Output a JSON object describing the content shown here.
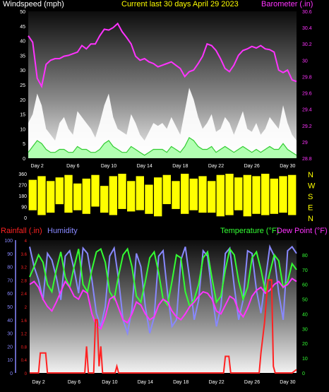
{
  "colors": {
    "wind_label": "#ffffff",
    "title": "#ffff00",
    "barometer": "#ff33ff",
    "rainfall": "#ff2222",
    "humidity": "#8888ff",
    "temperature": "#33ff33",
    "dewpoint": "#ff33ff",
    "winddir": "#ffff00"
  },
  "x_ticks": [
    "Day 2",
    "Day 6",
    "Day 10",
    "Day 14",
    "Day 18",
    "Day 22",
    "Day 26",
    "Day 30"
  ],
  "chart_data": [
    {
      "type": "line",
      "title": "Current last 30 days April 29 2023",
      "ylabel": "Windspeed (mph)",
      "y2label": "Barometer (.in)",
      "ylim": [
        0,
        50
      ],
      "y_ticks": [
        "0",
        "5",
        "10",
        "15",
        "20",
        "25",
        "30",
        "35",
        "40",
        "45",
        "50"
      ],
      "y2lim": [
        28.8,
        30.6
      ],
      "y2_ticks": [
        "28.8",
        "29",
        "29.2",
        "29.4",
        "29.6",
        "29.8",
        "30",
        "30.2",
        "30.4",
        "30.6"
      ],
      "xlim": [
        0,
        30
      ],
      "series": [
        {
          "name": "Windspeed (mph)",
          "role": "gust",
          "x": [
            0,
            0.5,
            1,
            1.5,
            2,
            2.5,
            3,
            3.5,
            4,
            4.5,
            5,
            5.5,
            6,
            6.5,
            7,
            7.5,
            8,
            8.5,
            9,
            9.5,
            10,
            10.5,
            11,
            11.5,
            12,
            12.5,
            13,
            13.5,
            14,
            14.5,
            15,
            15.5,
            16,
            16.5,
            17,
            17.5,
            18,
            18.5,
            19,
            19.5,
            20,
            20.5,
            21,
            21.5,
            22,
            22.5,
            23,
            23.5,
            24,
            24.5,
            25,
            25.5,
            26,
            26.5,
            27,
            27.5,
            28,
            28.5,
            29,
            29.5,
            30
          ],
          "values": [
            12,
            15,
            22,
            18,
            10,
            8,
            6,
            12,
            14,
            10,
            8,
            16,
            14,
            12,
            10,
            7,
            12,
            18,
            22,
            14,
            10,
            9,
            8,
            15,
            12,
            8,
            6,
            9,
            12,
            11,
            12,
            10,
            14,
            11,
            8,
            16,
            24,
            20,
            14,
            10,
            12,
            15,
            9,
            10,
            14,
            12,
            8,
            12,
            16,
            10,
            9,
            12,
            8,
            10,
            14,
            12,
            10,
            18,
            12,
            8,
            6
          ]
        },
        {
          "name": "Windspeed (mph)",
          "role": "average",
          "x": [
            0,
            0.5,
            1,
            1.5,
            2,
            2.5,
            3,
            3.5,
            4,
            4.5,
            5,
            5.5,
            6,
            6.5,
            7,
            7.5,
            8,
            8.5,
            9,
            9.5,
            10,
            10.5,
            11,
            11.5,
            12,
            12.5,
            13,
            13.5,
            14,
            14.5,
            15,
            15.5,
            16,
            16.5,
            17,
            17.5,
            18,
            18.5,
            19,
            19.5,
            20,
            20.5,
            21,
            21.5,
            22,
            22.5,
            23,
            23.5,
            24,
            24.5,
            25,
            25.5,
            26,
            26.5,
            27,
            27.5,
            28,
            28.5,
            29,
            29.5,
            30
          ],
          "values": [
            2,
            4,
            6,
            5,
            3,
            2,
            2,
            3,
            3,
            2,
            2,
            4,
            3,
            3,
            2,
            2,
            3,
            5,
            6,
            4,
            3,
            2,
            2,
            4,
            3,
            2,
            1,
            2,
            3,
            3,
            3,
            2,
            4,
            3,
            2,
            4,
            7,
            6,
            4,
            3,
            3,
            4,
            2,
            3,
            4,
            3,
            2,
            3,
            4,
            3,
            2,
            3,
            2,
            3,
            4,
            3,
            3,
            5,
            3,
            2,
            1
          ]
        },
        {
          "name": "Barometer (.in)",
          "axis": "right",
          "x": [
            0,
            0.5,
            1,
            1.5,
            2,
            2.5,
            3,
            3.5,
            4,
            4.5,
            5,
            5.5,
            6,
            6.5,
            7,
            7.5,
            8,
            8.5,
            9,
            9.5,
            10,
            10.5,
            11,
            11.5,
            12,
            12.5,
            13,
            13.5,
            14,
            14.5,
            15,
            15.5,
            16,
            16.5,
            17,
            17.5,
            18,
            18.5,
            19,
            19.5,
            20,
            20.5,
            21,
            21.5,
            22,
            22.5,
            23,
            23.5,
            24,
            24.5,
            25,
            25.5,
            26,
            26.5,
            27,
            27.5,
            28,
            28.5,
            29,
            29.5,
            30
          ],
          "values": [
            30.3,
            30.22,
            29.78,
            29.68,
            29.95,
            30.0,
            30.02,
            30.02,
            30.05,
            30.06,
            30.08,
            30.1,
            30.18,
            30.14,
            30.2,
            30.2,
            30.3,
            30.38,
            30.37,
            30.4,
            30.45,
            30.35,
            30.28,
            30.2,
            30.05,
            30.0,
            30.02,
            29.98,
            29.96,
            29.92,
            29.94,
            29.96,
            29.98,
            29.94,
            29.9,
            29.8,
            29.86,
            29.88,
            29.96,
            30.05,
            30.2,
            30.18,
            30.12,
            30.02,
            29.9,
            29.86,
            29.94,
            30.06,
            30.12,
            30.14,
            30.17,
            30.15,
            30.18,
            30.14,
            30.13,
            30.1,
            29.88,
            29.85,
            29.88,
            29.76,
            29.74
          ]
        }
      ]
    },
    {
      "type": "area",
      "ylabel": "Wind direction",
      "ylim": [
        0,
        360
      ],
      "y_ticks": [
        "0",
        "90",
        "180",
        "270",
        "360"
      ],
      "compass": [
        "N",
        "W",
        "S",
        "E",
        "N"
      ],
      "xlim": [
        0,
        30
      ],
      "series": [
        {
          "name": "Wind direction",
          "x": [
            0.5,
            1.5,
            2.5,
            3.5,
            4.5,
            5.5,
            6.5,
            7.5,
            8.5,
            9.5,
            10.5,
            11.5,
            12.5,
            13.5,
            14.5,
            15.5,
            16.5,
            17.5,
            18.5,
            19.5,
            20.5,
            21.5,
            22.5,
            23.5,
            24.5,
            25.5,
            26.5,
            27.5,
            28.5,
            29.5
          ],
          "low": [
            60,
            20,
            40,
            110,
            40,
            60,
            30,
            90,
            40,
            20,
            70,
            50,
            60,
            30,
            10,
            110,
            70,
            30,
            60,
            40,
            40,
            10,
            20,
            60,
            10,
            30,
            20,
            30,
            40,
            20
          ],
          "high": [
            310,
            340,
            300,
            330,
            350,
            280,
            320,
            350,
            260,
            340,
            360,
            300,
            340,
            270,
            330,
            350,
            300,
            360,
            320,
            340,
            300,
            350,
            360,
            330,
            350,
            340,
            360,
            320,
            340,
            350
          ]
        }
      ]
    },
    {
      "type": "line",
      "ylabel": "Rainfall (.in)",
      "ylabel2": "Humidity",
      "y2label": "Temperature (°F)",
      "y2label2": "Dew Point (°F)",
      "ylim_rain": [
        0,
        4
      ],
      "y_ticks_rain": [
        "0",
        "0.4",
        "0.8",
        "1.2",
        "1.6",
        "2",
        "2.4",
        "2.8",
        "3.2",
        "3.6",
        "4"
      ],
      "ylim_humidity": [
        0,
        100
      ],
      "y_ticks_humidity": [
        "0",
        "10",
        "20",
        "30",
        "40",
        "50",
        "60",
        "70",
        "80",
        "90",
        "100"
      ],
      "y2lim": [
        0,
        90
      ],
      "y2_ticks": [
        "0",
        "10",
        "20",
        "30",
        "40",
        "50",
        "60",
        "70",
        "80"
      ],
      "xlim": [
        0,
        30
      ],
      "series": [
        {
          "name": "Humidity",
          "axis": "humidity",
          "x": [
            0,
            0.5,
            1,
            1.5,
            2,
            2.5,
            3,
            3.5,
            4,
            4.5,
            5,
            5.5,
            6,
            6.5,
            7,
            7.5,
            8,
            8.5,
            9,
            9.5,
            10,
            10.5,
            11,
            11.5,
            12,
            12.5,
            13,
            13.5,
            14,
            14.5,
            15,
            15.5,
            16,
            16.5,
            17,
            17.5,
            18,
            18.5,
            19,
            19.5,
            20,
            20.5,
            21,
            21.5,
            22,
            22.5,
            23,
            23.5,
            24,
            24.5,
            25,
            25.5,
            26,
            26.5,
            27,
            27.5,
            28,
            28.5,
            29,
            29.5,
            30
          ],
          "values": [
            95,
            80,
            70,
            55,
            90,
            85,
            72,
            55,
            88,
            92,
            78,
            60,
            94,
            90,
            70,
            45,
            35,
            50,
            88,
            94,
            70,
            40,
            30,
            48,
            90,
            80,
            50,
            30,
            42,
            88,
            92,
            60,
            35,
            40,
            85,
            95,
            70,
            40,
            55,
            92,
            88,
            60,
            35,
            50,
            90,
            94,
            65,
            40,
            55,
            92,
            90,
            62,
            45,
            70,
            95,
            88,
            60,
            40,
            92,
            95,
            90
          ]
        },
        {
          "name": "Temperature (°F)",
          "axis": "right",
          "x": [
            0,
            0.5,
            1,
            1.5,
            2,
            2.5,
            3,
            3.5,
            4,
            4.5,
            5,
            5.5,
            6,
            6.5,
            7,
            7.5,
            8,
            8.5,
            9,
            9.5,
            10,
            10.5,
            11,
            11.5,
            12,
            12.5,
            13,
            13.5,
            14,
            14.5,
            15,
            15.5,
            16,
            16.5,
            17,
            17.5,
            18,
            18.5,
            19,
            19.5,
            20,
            20.5,
            21,
            21.5,
            22,
            22.5,
            23,
            23.5,
            24,
            24.5,
            25,
            25.5,
            26,
            26.5,
            27,
            27.5,
            28,
            28.5,
            29,
            29.5,
            30
          ],
          "values": [
            65,
            72,
            80,
            75,
            60,
            55,
            70,
            82,
            65,
            58,
            72,
            84,
            60,
            55,
            70,
            82,
            84,
            75,
            55,
            50,
            66,
            80,
            84,
            72,
            52,
            48,
            62,
            78,
            82,
            68,
            50,
            46,
            62,
            80,
            78,
            55,
            45,
            50,
            60,
            78,
            82,
            64,
            48,
            52,
            70,
            84,
            80,
            62,
            50,
            58,
            78,
            82,
            70,
            55,
            68,
            80,
            76,
            58,
            62,
            74,
            70
          ]
        },
        {
          "name": "Dew Point (°F)",
          "axis": "right",
          "x": [
            0,
            0.5,
            1,
            1.5,
            2,
            2.5,
            3,
            3.5,
            4,
            4.5,
            5,
            5.5,
            6,
            6.5,
            7,
            7.5,
            8,
            8.5,
            9,
            9.5,
            10,
            10.5,
            11,
            11.5,
            12,
            12.5,
            13,
            13.5,
            14,
            14.5,
            15,
            15.5,
            16,
            16.5,
            17,
            17.5,
            18,
            18.5,
            19,
            19.5,
            20,
            20.5,
            21,
            21.5,
            22,
            22.5,
            23,
            23.5,
            24,
            24.5,
            25,
            25.5,
            26,
            26.5,
            27,
            27.5,
            28,
            28.5,
            29,
            29.5,
            30
          ],
          "values": [
            60,
            62,
            58,
            50,
            45,
            42,
            48,
            55,
            62,
            58,
            52,
            50,
            56,
            54,
            40,
            32,
            30,
            38,
            50,
            52,
            44,
            36,
            34,
            40,
            48,
            46,
            40,
            36,
            38,
            46,
            50,
            48,
            42,
            38,
            36,
            40,
            45,
            48,
            52,
            55,
            54,
            50,
            42,
            40,
            46,
            52,
            50,
            42,
            38,
            44,
            52,
            56,
            58,
            54,
            56,
            60,
            62,
            58,
            60,
            64,
            62
          ]
        },
        {
          "name": "Rainfall (.in)",
          "axis": "rain",
          "x": [
            0,
            1.0,
            1.2,
            1.8,
            2.0,
            6.2,
            6.4,
            6.6,
            7.2,
            7.4,
            7.6,
            7.8,
            8.0,
            8.2,
            9.6,
            9.8,
            10.0,
            21.8,
            22.0,
            22.4,
            22.6,
            25.8,
            26.0,
            26.4,
            26.8,
            27.2,
            27.4,
            27.6,
            29.5,
            30
          ],
          "values": [
            0,
            0,
            0.6,
            0.6,
            0,
            0,
            0.8,
            0,
            0,
            1.6,
            1.6,
            0.2,
            0.8,
            0,
            0,
            0.2,
            0,
            0,
            0.5,
            0.5,
            0,
            0,
            0.6,
            1.5,
            2.8,
            2.8,
            0.2,
            0,
            0,
            0.1
          ]
        }
      ]
    }
  ]
}
